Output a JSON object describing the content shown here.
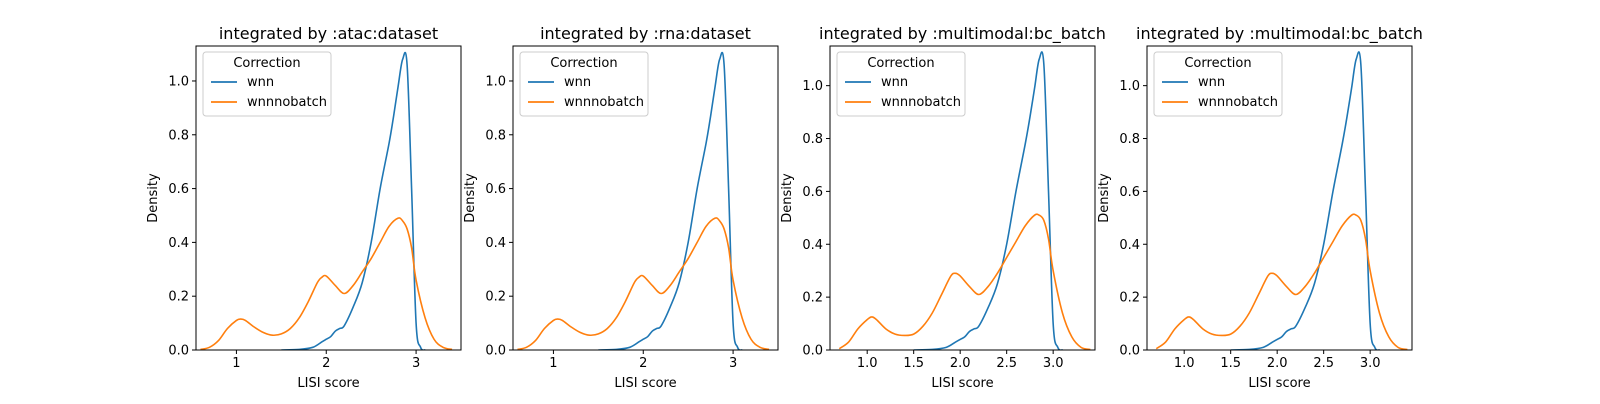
{
  "chart_data": [
    {
      "type": "line",
      "title": "integrated by :atac:dataset",
      "xlabel": "LISI score",
      "ylabel": "Density",
      "xlim": [
        0.55,
        3.5
      ],
      "ylim": [
        0,
        1.13
      ],
      "xticks": [
        1,
        2,
        3
      ],
      "yticks": [
        0.0,
        0.2,
        0.4,
        0.6,
        0.8,
        1.0
      ],
      "ytick_labels": [
        "0.0",
        "0.2",
        "0.4",
        "0.6",
        "0.8",
        "1.0"
      ],
      "legend": {
        "title": "Correction",
        "location": "upper-left"
      },
      "series": [
        {
          "name": "wnn",
          "color": "#1f77b4",
          "x": [
            1.5,
            1.7,
            1.85,
            1.95,
            2.0,
            2.05,
            2.1,
            2.15,
            2.2,
            2.3,
            2.4,
            2.5,
            2.6,
            2.7,
            2.75,
            2.8,
            2.85,
            2.9,
            2.95,
            3.0,
            3.05,
            3.1
          ],
          "y": [
            0.0,
            0.002,
            0.01,
            0.03,
            0.04,
            0.05,
            0.07,
            0.08,
            0.09,
            0.16,
            0.25,
            0.4,
            0.6,
            0.77,
            0.87,
            0.98,
            1.08,
            1.06,
            0.6,
            0.1,
            0.01,
            0.0
          ]
        },
        {
          "name": "wnnnobatch",
          "color": "#ff7f0e",
          "x": [
            0.6,
            0.7,
            0.8,
            0.9,
            1.0,
            1.05,
            1.1,
            1.2,
            1.3,
            1.4,
            1.5,
            1.6,
            1.7,
            1.8,
            1.9,
            1.95,
            2.0,
            2.1,
            2.2,
            2.3,
            2.4,
            2.5,
            2.6,
            2.7,
            2.8,
            2.85,
            2.9,
            2.95,
            3.0,
            3.1,
            3.2,
            3.3,
            3.4
          ],
          "y": [
            0.002,
            0.01,
            0.035,
            0.08,
            0.11,
            0.115,
            0.11,
            0.085,
            0.065,
            0.055,
            0.06,
            0.08,
            0.12,
            0.18,
            0.25,
            0.27,
            0.275,
            0.24,
            0.21,
            0.24,
            0.29,
            0.34,
            0.4,
            0.46,
            0.49,
            0.48,
            0.45,
            0.38,
            0.26,
            0.12,
            0.04,
            0.01,
            0.002
          ]
        }
      ]
    },
    {
      "type": "line",
      "title": "integrated by :rna:dataset",
      "xlabel": "LISI score",
      "ylabel": "Density",
      "xlim": [
        0.55,
        3.5
      ],
      "ylim": [
        0,
        1.13
      ],
      "xticks": [
        1,
        2,
        3
      ],
      "yticks": [
        0.0,
        0.2,
        0.4,
        0.6,
        0.8,
        1.0
      ],
      "ytick_labels": [
        "0.0",
        "0.2",
        "0.4",
        "0.6",
        "0.8",
        "1.0"
      ],
      "legend": {
        "title": "Correction",
        "location": "upper-left"
      },
      "series": [
        {
          "name": "wnn",
          "color": "#1f77b4",
          "x": [
            1.5,
            1.7,
            1.85,
            1.95,
            2.0,
            2.05,
            2.1,
            2.15,
            2.2,
            2.3,
            2.4,
            2.5,
            2.6,
            2.7,
            2.75,
            2.8,
            2.85,
            2.9,
            2.95,
            3.0,
            3.05,
            3.1
          ],
          "y": [
            0.0,
            0.002,
            0.01,
            0.03,
            0.04,
            0.05,
            0.07,
            0.08,
            0.09,
            0.16,
            0.25,
            0.4,
            0.6,
            0.77,
            0.87,
            0.98,
            1.08,
            1.06,
            0.6,
            0.1,
            0.01,
            0.0
          ]
        },
        {
          "name": "wnnnobatch",
          "color": "#ff7f0e",
          "x": [
            0.6,
            0.7,
            0.8,
            0.9,
            1.0,
            1.05,
            1.1,
            1.2,
            1.3,
            1.4,
            1.5,
            1.6,
            1.7,
            1.8,
            1.9,
            1.95,
            2.0,
            2.1,
            2.2,
            2.3,
            2.4,
            2.5,
            2.6,
            2.7,
            2.8,
            2.85,
            2.9,
            2.95,
            3.0,
            3.1,
            3.2,
            3.3,
            3.4
          ],
          "y": [
            0.002,
            0.01,
            0.035,
            0.08,
            0.11,
            0.115,
            0.11,
            0.085,
            0.065,
            0.055,
            0.06,
            0.08,
            0.12,
            0.18,
            0.25,
            0.27,
            0.275,
            0.24,
            0.21,
            0.24,
            0.29,
            0.34,
            0.4,
            0.46,
            0.49,
            0.48,
            0.45,
            0.38,
            0.26,
            0.12,
            0.04,
            0.01,
            0.002
          ]
        }
      ]
    },
    {
      "type": "line",
      "title": "integrated by :multimodal:bc_batch",
      "xlabel": "LISI score",
      "ylabel": "Density",
      "xlim": [
        0.6,
        3.45
      ],
      "ylim": [
        0,
        1.15
      ],
      "xticks": [
        1.0,
        1.5,
        2.0,
        2.5,
        3.0
      ],
      "xtick_labels": [
        "1.0",
        "1.5",
        "2.0",
        "2.5",
        "3.0"
      ],
      "yticks": [
        0.0,
        0.2,
        0.4,
        0.6,
        0.8,
        1.0
      ],
      "ytick_labels": [
        "0.0",
        "0.2",
        "0.4",
        "0.6",
        "0.8",
        "1.0"
      ],
      "legend": {
        "title": "Correction",
        "location": "upper-left"
      },
      "series": [
        {
          "name": "wnn",
          "color": "#1f77b4",
          "x": [
            1.5,
            1.7,
            1.85,
            1.95,
            2.0,
            2.05,
            2.1,
            2.15,
            2.2,
            2.3,
            2.4,
            2.5,
            2.6,
            2.7,
            2.75,
            2.8,
            2.85,
            2.9,
            2.95,
            3.0,
            3.05,
            3.1
          ],
          "y": [
            0.0,
            0.002,
            0.01,
            0.03,
            0.04,
            0.05,
            0.07,
            0.08,
            0.09,
            0.16,
            0.25,
            0.4,
            0.6,
            0.78,
            0.88,
            0.99,
            1.1,
            1.08,
            0.6,
            0.1,
            0.01,
            0.0
          ]
        },
        {
          "name": "wnnnobatch",
          "color": "#ff7f0e",
          "x": [
            0.7,
            0.8,
            0.9,
            1.0,
            1.05,
            1.1,
            1.2,
            1.3,
            1.4,
            1.5,
            1.6,
            1.7,
            1.8,
            1.9,
            1.95,
            2.0,
            2.1,
            2.2,
            2.3,
            2.4,
            2.5,
            2.6,
            2.7,
            2.8,
            2.85,
            2.9,
            2.95,
            3.0,
            3.1,
            3.2,
            3.3,
            3.4
          ],
          "y": [
            0.005,
            0.03,
            0.08,
            0.115,
            0.125,
            0.115,
            0.08,
            0.06,
            0.055,
            0.06,
            0.09,
            0.14,
            0.21,
            0.28,
            0.29,
            0.28,
            0.24,
            0.21,
            0.24,
            0.29,
            0.35,
            0.41,
            0.47,
            0.51,
            0.51,
            0.49,
            0.42,
            0.3,
            0.14,
            0.05,
            0.01,
            0.002
          ]
        }
      ]
    },
    {
      "type": "line",
      "title": "integrated by :multimodal:bc_batch",
      "xlabel": "LISI score",
      "ylabel": "Density",
      "xlim": [
        0.6,
        3.45
      ],
      "ylim": [
        0,
        1.15
      ],
      "xticks": [
        1.0,
        1.5,
        2.0,
        2.5,
        3.0
      ],
      "xtick_labels": [
        "1.0",
        "1.5",
        "2.0",
        "2.5",
        "3.0"
      ],
      "yticks": [
        0.0,
        0.2,
        0.4,
        0.6,
        0.8,
        1.0
      ],
      "ytick_labels": [
        "0.0",
        "0.2",
        "0.4",
        "0.6",
        "0.8",
        "1.0"
      ],
      "legend": {
        "title": "Correction",
        "location": "upper-left"
      },
      "series": [
        {
          "name": "wnn",
          "color": "#1f77b4",
          "x": [
            1.5,
            1.7,
            1.85,
            1.95,
            2.0,
            2.05,
            2.1,
            2.15,
            2.2,
            2.3,
            2.4,
            2.5,
            2.6,
            2.7,
            2.75,
            2.8,
            2.85,
            2.9,
            2.95,
            3.0,
            3.05,
            3.1
          ],
          "y": [
            0.0,
            0.002,
            0.01,
            0.03,
            0.04,
            0.05,
            0.07,
            0.08,
            0.09,
            0.16,
            0.25,
            0.4,
            0.6,
            0.78,
            0.88,
            0.99,
            1.1,
            1.08,
            0.6,
            0.1,
            0.01,
            0.0
          ]
        },
        {
          "name": "wnnnobatch",
          "color": "#ff7f0e",
          "x": [
            0.7,
            0.8,
            0.9,
            1.0,
            1.05,
            1.1,
            1.2,
            1.3,
            1.4,
            1.5,
            1.6,
            1.7,
            1.8,
            1.9,
            1.95,
            2.0,
            2.1,
            2.2,
            2.3,
            2.4,
            2.5,
            2.6,
            2.7,
            2.8,
            2.85,
            2.9,
            2.95,
            3.0,
            3.1,
            3.2,
            3.3,
            3.4
          ],
          "y": [
            0.005,
            0.03,
            0.08,
            0.115,
            0.125,
            0.115,
            0.08,
            0.06,
            0.055,
            0.06,
            0.09,
            0.14,
            0.21,
            0.28,
            0.29,
            0.28,
            0.24,
            0.21,
            0.24,
            0.29,
            0.35,
            0.41,
            0.47,
            0.51,
            0.51,
            0.49,
            0.42,
            0.3,
            0.14,
            0.05,
            0.01,
            0.002
          ]
        }
      ]
    }
  ]
}
